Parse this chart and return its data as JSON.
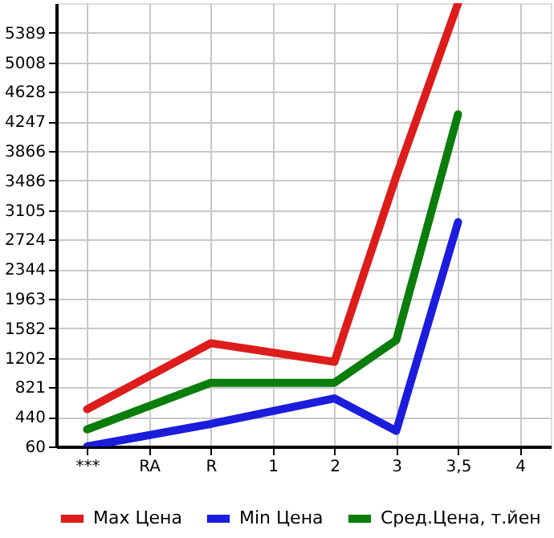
{
  "chart_data": {
    "type": "line",
    "categories": [
      "***",
      "RA",
      "R",
      "1",
      "2",
      "3",
      "3,5",
      "4"
    ],
    "series": [
      {
        "name": "Max Цена",
        "color": "#dd1c1c",
        "values": [
          540,
          null,
          1390,
          null,
          1150,
          3540,
          5770,
          null
        ]
      },
      {
        "name": "Min Цена",
        "color": "#1c1cdd",
        "values": [
          60,
          null,
          350,
          null,
          680,
          260,
          2950,
          null
        ]
      },
      {
        "name": "Сред.Цена, т.йен",
        "color": "#0a7d0a",
        "values": [
          280,
          null,
          880,
          null,
          880,
          1430,
          4340,
          null
        ]
      }
    ],
    "ylim": [
      60,
      5770
    ],
    "yticks": [
      60,
      440,
      821,
      1202,
      1582,
      1963,
      2344,
      2724,
      3105,
      3486,
      3866,
      4247,
      4628,
      5008,
      5389
    ],
    "grid": true,
    "legend": "bottom",
    "marker": "none",
    "line_style": "solid"
  }
}
